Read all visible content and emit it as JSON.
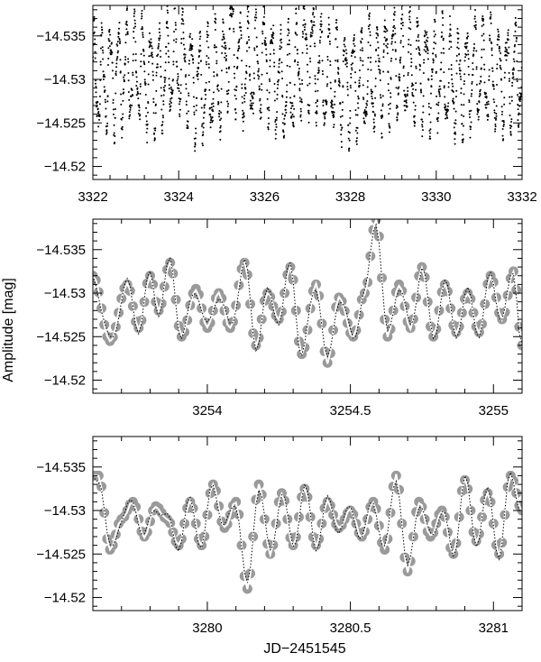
{
  "figure": {
    "ylabel": "Amplitude [mag]",
    "xlabel": "JD−2451545"
  },
  "chart_data": [
    {
      "type": "scatter",
      "panel": "top",
      "xlim": [
        3322,
        3332
      ],
      "ylim": [
        -14.5385,
        -14.5185
      ],
      "y_inverted": true,
      "x_ticks": [
        3322,
        3324,
        3326,
        3328,
        3330,
        3332
      ],
      "x_tick_labels": [
        "3322",
        "3324",
        "3326",
        "3328",
        "3330",
        "3332"
      ],
      "y_ticks": [
        -14.535,
        -14.53,
        -14.525,
        -14.52
      ],
      "y_tick_labels": [
        "−14.535",
        "−14.53",
        "−14.525",
        "−14.52"
      ],
      "series": [
        {
          "style": "black dots",
          "x": [
            3322.0,
            3322.5,
            3323.0,
            3323.5,
            3324.0,
            3324.5,
            3325.0,
            3325.2,
            3325.5,
            3326.0,
            3326.5,
            3327.0,
            3327.5,
            3328.0,
            3328.5,
            3329.0,
            3329.5,
            3330.0,
            3330.5,
            3331.0,
            3331.5,
            3332.0
          ],
          "y": [
            -14.5295,
            -14.5305,
            -14.531,
            -14.53,
            -14.532,
            -14.529,
            -14.53,
            -14.5345,
            -14.5305,
            -14.532,
            -14.529,
            -14.533,
            -14.53,
            -14.5295,
            -14.53,
            -14.532,
            -14.531,
            -14.5305,
            -14.5295,
            -14.531,
            -14.53,
            -14.5305
          ]
        }
      ]
    },
    {
      "type": "line",
      "panel": "middle",
      "xlim": [
        3253.6,
        3255.1
      ],
      "ylim": [
        -14.5385,
        -14.5185
      ],
      "y_inverted": true,
      "x_ticks": [
        3254,
        3254.5,
        3255
      ],
      "x_tick_labels": [
        "3254",
        "3254.5",
        "3255"
      ],
      "y_ticks": [
        -14.535,
        -14.53,
        -14.525,
        -14.52
      ],
      "y_tick_labels": [
        "−14.535",
        "−14.53",
        "−14.525",
        "−14.52"
      ],
      "series": [
        {
          "style": "grey filled circles",
          "x": [
            3253.6,
            3253.66,
            3253.72,
            3253.76,
            3253.8,
            3253.83,
            3253.87,
            3253.91,
            3253.96,
            3254.0,
            3254.04,
            3254.08,
            3254.13,
            3254.17,
            3254.21,
            3254.25,
            3254.29,
            3254.33,
            3254.38,
            3254.42,
            3254.46,
            3254.51,
            3254.55,
            3254.59,
            3254.63,
            3254.67,
            3254.71,
            3254.75,
            3254.79,
            3254.83,
            3254.87,
            3254.91,
            3254.95,
            3254.99,
            3255.03,
            3255.07,
            3255.1
          ],
          "y": [
            -14.532,
            -14.5245,
            -14.531,
            -14.526,
            -14.532,
            -14.528,
            -14.5335,
            -14.525,
            -14.5305,
            -14.526,
            -14.53,
            -14.526,
            -14.5335,
            -14.524,
            -14.53,
            -14.527,
            -14.533,
            -14.523,
            -14.531,
            -14.522,
            -14.5295,
            -14.525,
            -14.53,
            -14.5385,
            -14.525,
            -14.531,
            -14.526,
            -14.533,
            -14.525,
            -14.531,
            -14.5255,
            -14.53,
            -14.5255,
            -14.532,
            -14.527,
            -14.5325,
            -14.524
          ]
        }
      ]
    },
    {
      "type": "line",
      "panel": "bottom",
      "xlim": [
        3279.6,
        3281.1
      ],
      "ylim": [
        -14.5385,
        -14.5185
      ],
      "y_inverted": true,
      "x_ticks": [
        3280,
        3280.5,
        3281
      ],
      "x_tick_labels": [
        "3280",
        "3280.5",
        "3281"
      ],
      "y_ticks": [
        -14.535,
        -14.53,
        -14.525,
        -14.52
      ],
      "y_tick_labels": [
        "−14.535",
        "−14.53",
        "−14.525",
        "−14.52"
      ],
      "series": [
        {
          "style": "grey filled circles",
          "x": [
            3279.62,
            3279.66,
            3279.7,
            3279.74,
            3279.78,
            3279.82,
            3279.86,
            3279.9,
            3279.94,
            3279.98,
            3280.02,
            3280.06,
            3280.1,
            3280.14,
            3280.18,
            3280.22,
            3280.26,
            3280.3,
            3280.34,
            3280.38,
            3280.42,
            3280.46,
            3280.5,
            3280.54,
            3280.58,
            3280.62,
            3280.66,
            3280.7,
            3280.74,
            3280.78,
            3280.82,
            3280.86,
            3280.9,
            3280.94,
            3280.98,
            3281.02,
            3281.06,
            3281.1
          ],
          "y": [
            -14.534,
            -14.5255,
            -14.529,
            -14.531,
            -14.527,
            -14.5305,
            -14.529,
            -14.526,
            -14.531,
            -14.526,
            -14.533,
            -14.528,
            -14.531,
            -14.521,
            -14.533,
            -14.525,
            -14.532,
            -14.526,
            -14.5325,
            -14.526,
            -14.531,
            -14.528,
            -14.53,
            -14.527,
            -14.531,
            -14.5255,
            -14.534,
            -14.523,
            -14.531,
            -14.527,
            -14.53,
            -14.525,
            -14.5335,
            -14.5265,
            -14.532,
            -14.525,
            -14.534,
            -14.53
          ]
        }
      ]
    }
  ]
}
